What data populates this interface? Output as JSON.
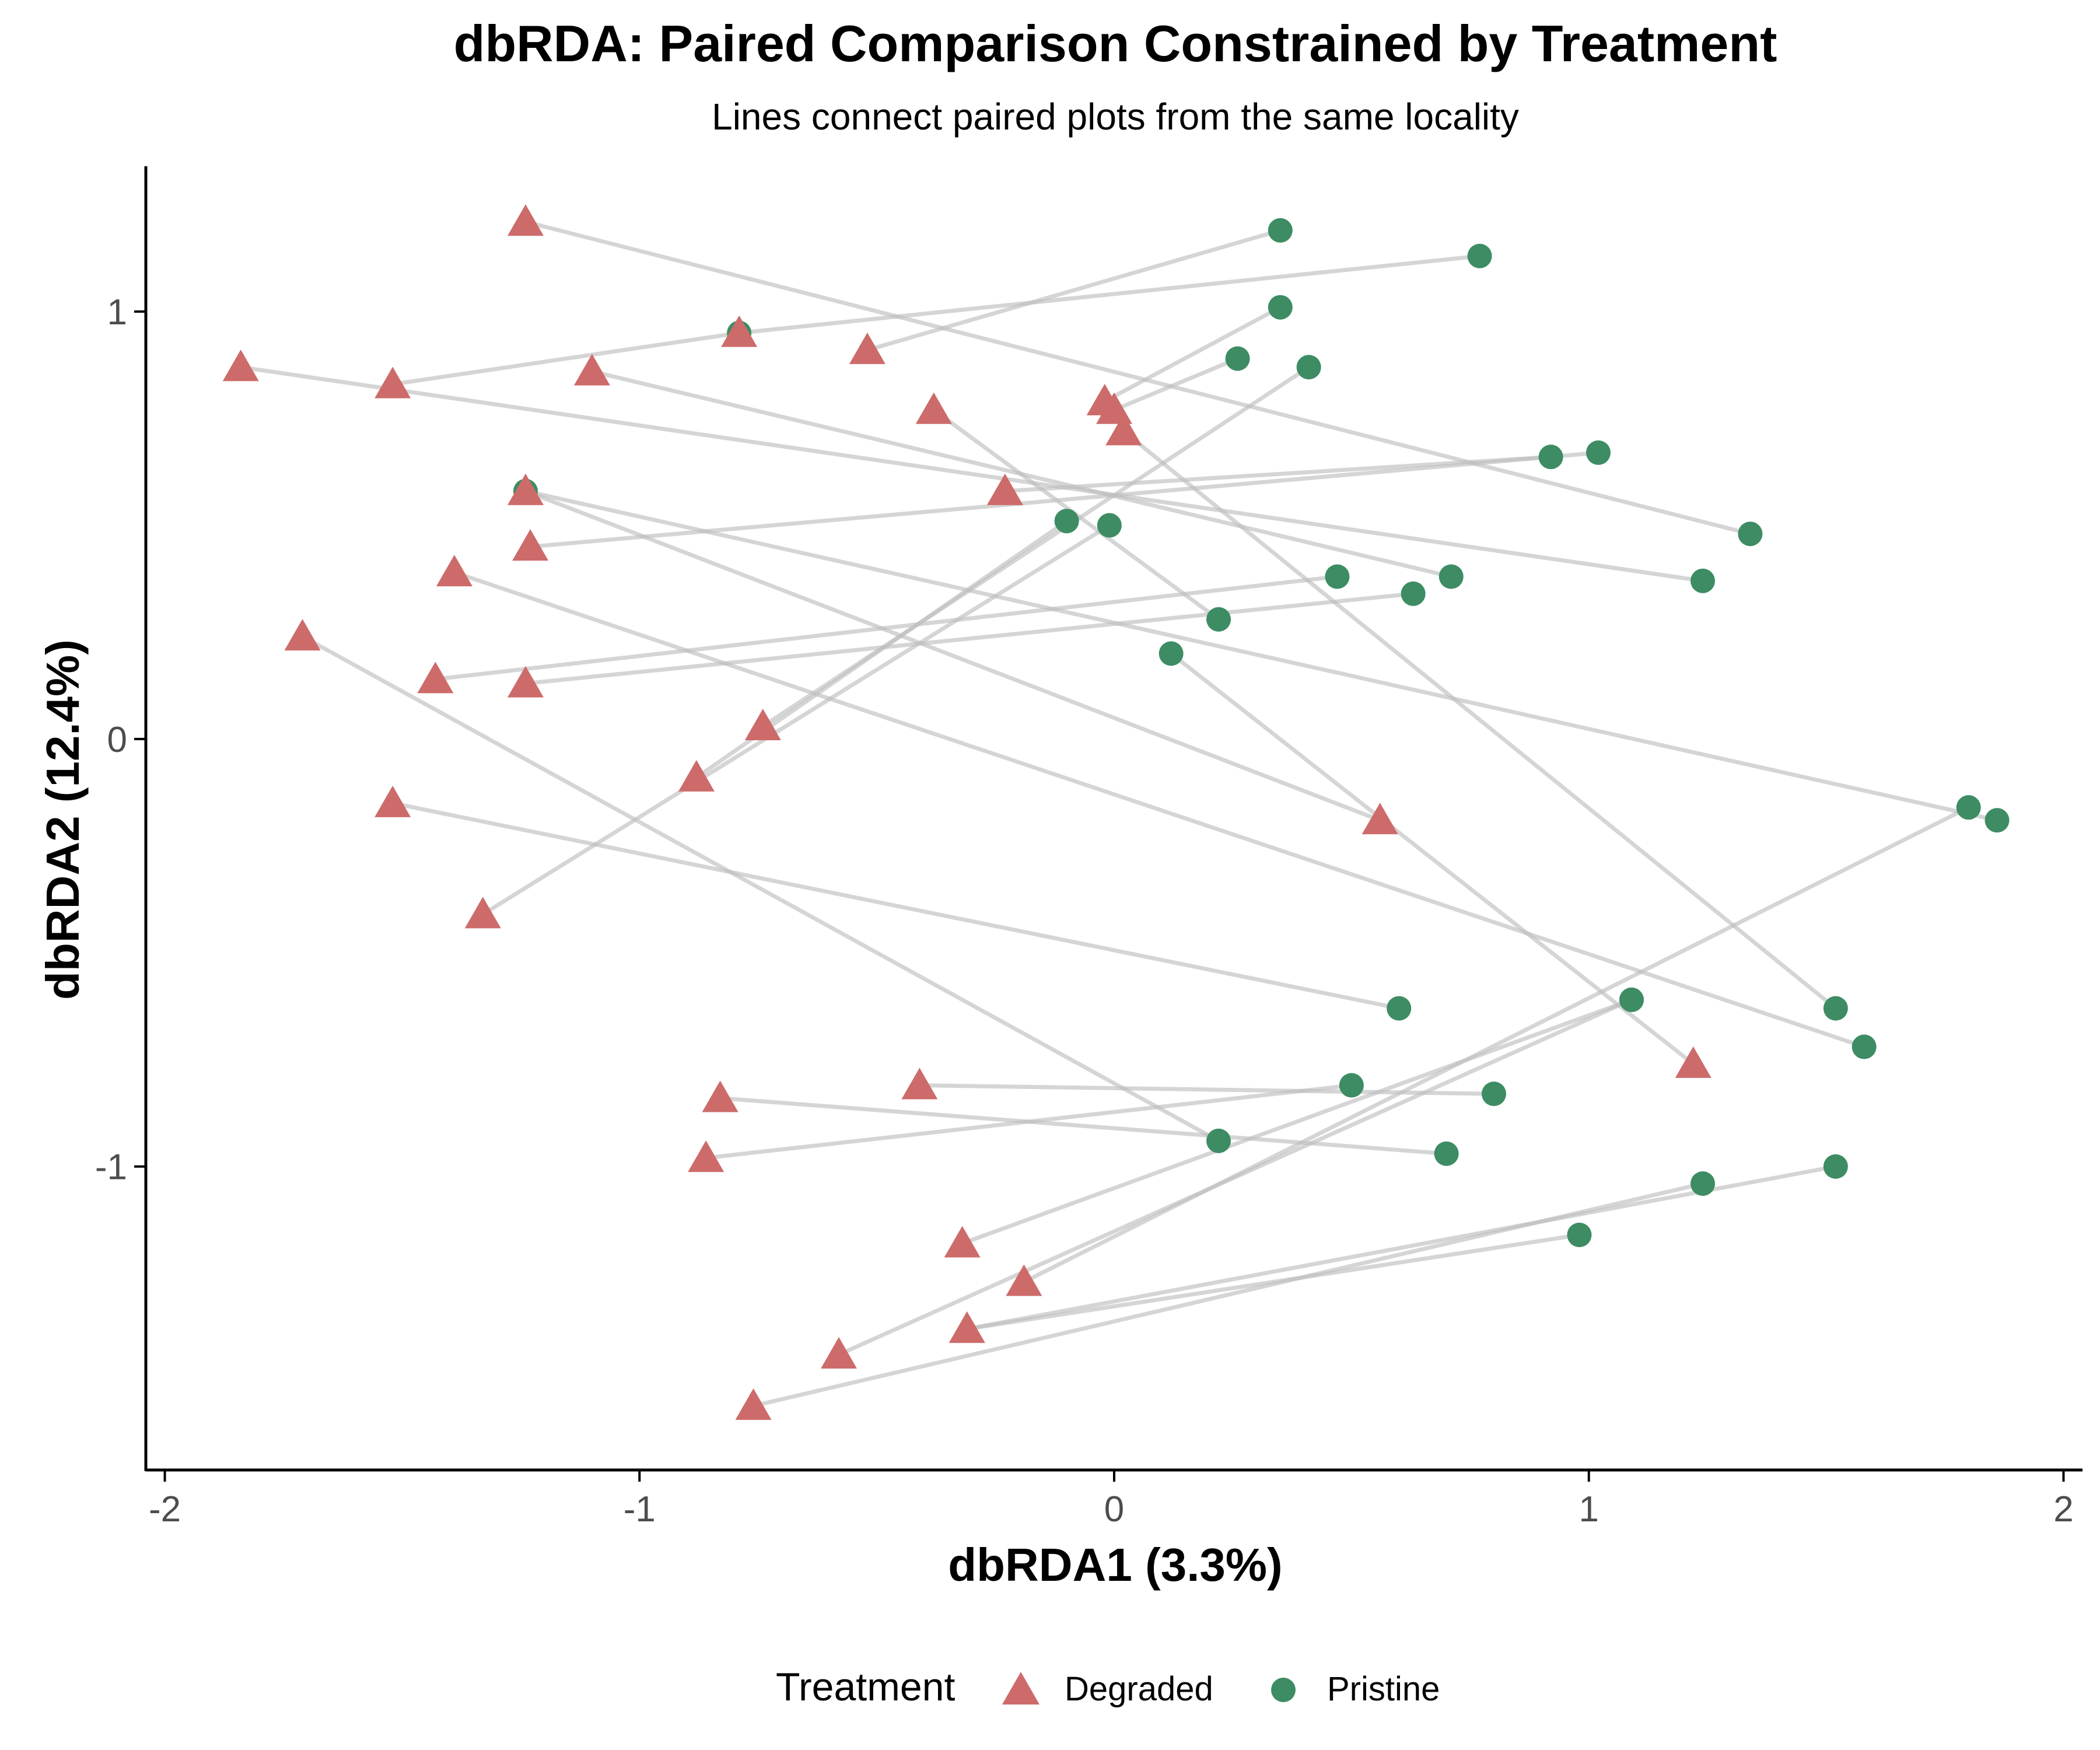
{
  "chart_data": {
    "type": "scatter",
    "title": "dbRDA: Paired Comparison Constrained by Treatment",
    "subtitle": "Lines connect paired plots from the same locality",
    "xlabel": "dbRDA1 (3.3%)",
    "ylabel": "dbRDA2 (12.4%)",
    "xlim": [
      -2.04,
      2.04
    ],
    "ylim": [
      -1.71,
      1.34
    ],
    "xticks": [
      -2,
      -1,
      0,
      1,
      2
    ],
    "xtick_labels": [
      "-2",
      "-1",
      "0",
      "1",
      "2"
    ],
    "yticks": [
      -1,
      0,
      1
    ],
    "ytick_labels": [
      "-1",
      "0",
      "1"
    ],
    "grid": false,
    "legend": {
      "title": "Treatment",
      "position": "bottom",
      "entries": [
        {
          "label": "Degraded",
          "shape": "triangle",
          "color": "#CD6B6B"
        },
        {
          "label": "Pristine",
          "shape": "circle",
          "color": "#3D8C64"
        }
      ]
    },
    "colors": {
      "degraded": "#CD6B6B",
      "pristine": "#3D8C64",
      "pair_line": "#BEBEBE"
    },
    "pairs": [
      {
        "degraded": [
          -1.24,
          1.21
        ],
        "pristine": [
          1.34,
          0.48
        ]
      },
      {
        "degraded": [
          -0.52,
          0.91
        ],
        "pristine": [
          0.35,
          1.19
        ]
      },
      {
        "degraded": [
          -0.79,
          0.95
        ],
        "pristine": [
          0.77,
          1.13
        ]
      },
      {
        "degraded": [
          -1.84,
          0.87
        ],
        "pristine": [
          1.24,
          0.37
        ]
      },
      {
        "degraded": [
          -1.52,
          0.83
        ],
        "pristine": [
          -0.79,
          0.95
        ]
      },
      {
        "degraded": [
          -1.1,
          0.86
        ],
        "pristine": [
          0.71,
          0.38
        ]
      },
      {
        "degraded": [
          -0.38,
          0.77
        ],
        "pristine": [
          0.22,
          0.28
        ]
      },
      {
        "degraded": [
          -0.02,
          0.79
        ],
        "pristine": [
          0.35,
          1.01
        ]
      },
      {
        "degraded": [
          0.0,
          0.77
        ],
        "pristine": [
          0.26,
          0.89
        ]
      },
      {
        "degraded": [
          0.02,
          0.72
        ],
        "pristine": [
          1.52,
          -0.63
        ]
      },
      {
        "degraded": [
          -1.24,
          0.58
        ],
        "pristine": [
          1.86,
          -0.19
        ]
      },
      {
        "degraded": [
          -1.23,
          0.45
        ],
        "pristine": [
          1.02,
          0.67
        ]
      },
      {
        "degraded": [
          -0.23,
          0.58
        ],
        "pristine": [
          0.92,
          0.66
        ]
      },
      {
        "degraded": [
          -1.39,
          0.39
        ],
        "pristine": [
          1.58,
          -0.72
        ]
      },
      {
        "degraded": [
          -1.71,
          0.24
        ],
        "pristine": [
          0.22,
          -0.94
        ]
      },
      {
        "degraded": [
          -1.43,
          0.14
        ],
        "pristine": [
          0.47,
          0.38
        ]
      },
      {
        "degraded": [
          -1.24,
          0.13
        ],
        "pristine": [
          0.63,
          0.34
        ]
      },
      {
        "degraded": [
          -0.74,
          0.03
        ],
        "pristine": [
          0.41,
          0.87
        ]
      },
      {
        "degraded": [
          -0.88,
          -0.09
        ],
        "pristine": [
          -0.1,
          0.51
        ]
      },
      {
        "degraded": [
          -1.33,
          -0.41
        ],
        "pristine": [
          -0.01,
          0.5
        ]
      },
      {
        "degraded": [
          -1.52,
          -0.15
        ],
        "pristine": [
          0.6,
          -0.63
        ]
      },
      {
        "degraded": [
          -0.41,
          -0.81
        ],
        "pristine": [
          0.8,
          -0.83
        ]
      },
      {
        "degraded": [
          -0.83,
          -0.84
        ],
        "pristine": [
          0.7,
          -0.97
        ]
      },
      {
        "degraded": [
          -0.86,
          -0.98
        ],
        "pristine": [
          0.5,
          -0.81
        ]
      },
      {
        "degraded": [
          -0.32,
          -1.18
        ],
        "pristine": [
          1.09,
          -0.61
        ]
      },
      {
        "degraded": [
          -0.19,
          -1.27
        ],
        "pristine": [
          1.8,
          -0.16
        ]
      },
      {
        "degraded": [
          -0.31,
          -1.38
        ],
        "pristine": [
          0.98,
          -1.16
        ]
      },
      {
        "degraded": [
          -0.58,
          -1.44
        ],
        "pristine": [
          1.09,
          -0.61
        ]
      },
      {
        "degraded": [
          -0.76,
          -1.56
        ],
        "pristine": [
          1.24,
          -1.04
        ]
      },
      {
        "degraded": [
          -0.31,
          -1.38
        ],
        "pristine": [
          1.52,
          -1.0
        ]
      },
      {
        "degraded": [
          1.22,
          -0.76
        ],
        "pristine": [
          0.12,
          0.2
        ]
      },
      {
        "degraded": [
          0.56,
          -0.19
        ],
        "pristine": [
          -1.24,
          0.58
        ]
      }
    ]
  }
}
